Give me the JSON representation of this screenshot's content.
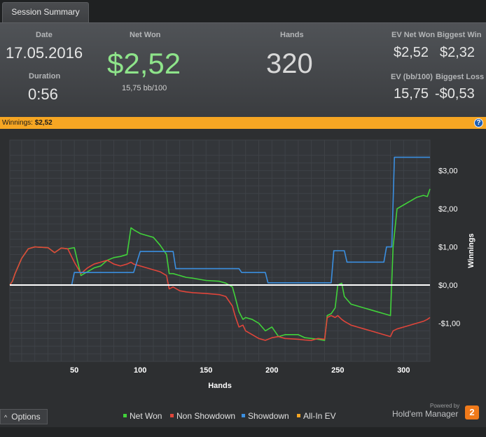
{
  "tab": {
    "label": "Session Summary"
  },
  "summary": {
    "date_label": "Date",
    "date_value": "17.05.2016",
    "duration_label": "Duration",
    "duration_value": "0:56",
    "net_won_label": "Net Won",
    "net_won_value": "$2,52",
    "bb100_value": "15,75 bb/100",
    "hands_label": "Hands",
    "hands_value": "320",
    "ev_net_won_label": "EV Net Won",
    "ev_net_won_value": "$2,52",
    "biggest_win_label": "Biggest Win",
    "biggest_win_value": "$2,32",
    "ev_bb100_label": "EV (bb/100)",
    "ev_bb100_value": "15,75",
    "biggest_loss_label": "Biggest Loss",
    "biggest_loss_value": "-$0,53"
  },
  "winbar": {
    "label": "Winnings:",
    "value": "$2,52",
    "help": "?"
  },
  "options": {
    "label": "Options"
  },
  "legend": [
    {
      "label": "Net Won",
      "color": "#41d23a"
    },
    {
      "label": "Non Showdown",
      "color": "#e0453a"
    },
    {
      "label": "Showdown",
      "color": "#3b8fe0"
    },
    {
      "label": "All-In EV",
      "color": "#f6a623"
    }
  ],
  "branding": {
    "powered": "Powered by",
    "name": "Hold'em Manager",
    "logo": "2"
  },
  "colors": {
    "accent": "#f6a623",
    "net_won": "#41d23a",
    "non_showdown": "#e0453a",
    "showdown": "#3b8fe0"
  },
  "chart_data": {
    "type": "line",
    "xlabel": "Hands",
    "ylabel": "Winnings",
    "xlim": [
      1,
      320
    ],
    "ylim": [
      -2.0,
      3.8
    ],
    "xticks": [
      50,
      100,
      150,
      200,
      250,
      300
    ],
    "yticks": [
      3.0,
      2.0,
      1.0,
      0.0,
      -1.0
    ],
    "ytick_labels": [
      "$3,00",
      "$2,00",
      "$1,00",
      "$0,00",
      "-$1,00"
    ],
    "grid": true,
    "series": [
      {
        "name": "Net Won",
        "color": "#41d23a",
        "x": [
          1,
          3,
          5,
          10,
          15,
          20,
          30,
          35,
          40,
          45,
          50,
          55,
          60,
          65,
          70,
          75,
          80,
          85,
          90,
          93,
          95,
          100,
          105,
          110,
          115,
          120,
          122,
          125,
          130,
          135,
          140,
          150,
          160,
          165,
          170,
          172,
          175,
          178,
          180,
          185,
          190,
          195,
          200,
          205,
          210,
          220,
          225,
          230,
          235,
          240,
          242,
          245,
          248,
          250,
          253,
          255,
          260,
          265,
          270,
          275,
          280,
          285,
          290,
          292,
          295,
          300,
          305,
          310,
          315,
          318,
          320
        ],
        "y": [
          0.0,
          0.1,
          0.3,
          0.7,
          0.95,
          1.0,
          0.98,
          0.85,
          0.97,
          0.95,
          0.98,
          0.25,
          0.35,
          0.45,
          0.5,
          0.65,
          0.72,
          0.75,
          0.8,
          1.5,
          1.45,
          1.35,
          1.3,
          1.25,
          1.05,
          0.8,
          0.3,
          0.3,
          0.25,
          0.2,
          0.18,
          0.12,
          0.1,
          0.05,
          -0.05,
          -0.3,
          -0.7,
          -0.9,
          -0.85,
          -0.9,
          -1.0,
          -1.2,
          -1.1,
          -1.35,
          -1.3,
          -1.3,
          -1.38,
          -1.4,
          -1.42,
          -1.45,
          -0.8,
          -0.75,
          -0.6,
          0.0,
          0.05,
          -0.3,
          -0.5,
          -0.55,
          -0.6,
          -0.65,
          -0.7,
          -0.75,
          -0.8,
          1.0,
          2.0,
          2.1,
          2.2,
          2.3,
          2.35,
          2.32,
          2.52
        ]
      },
      {
        "name": "Non Showdown",
        "color": "#e0453a",
        "x": [
          1,
          3,
          5,
          10,
          15,
          20,
          30,
          35,
          40,
          45,
          50,
          55,
          60,
          65,
          70,
          75,
          80,
          85,
          90,
          93,
          95,
          100,
          105,
          110,
          115,
          120,
          122,
          125,
          130,
          135,
          140,
          150,
          160,
          165,
          170,
          172,
          175,
          178,
          180,
          185,
          190,
          195,
          200,
          205,
          210,
          220,
          225,
          230,
          235,
          240,
          242,
          245,
          248,
          250,
          253,
          255,
          260,
          265,
          270,
          275,
          280,
          285,
          290,
          292,
          295,
          300,
          305,
          310,
          315,
          318,
          320
        ],
        "y": [
          0.0,
          0.1,
          0.3,
          0.7,
          0.95,
          1.0,
          0.98,
          0.85,
          0.97,
          0.95,
          0.6,
          0.3,
          0.45,
          0.55,
          0.6,
          0.65,
          0.55,
          0.5,
          0.55,
          0.6,
          0.55,
          0.5,
          0.45,
          0.4,
          0.35,
          0.25,
          -0.1,
          -0.05,
          -0.15,
          -0.18,
          -0.2,
          -0.22,
          -0.25,
          -0.3,
          -0.55,
          -0.8,
          -1.1,
          -1.05,
          -1.2,
          -1.3,
          -1.4,
          -1.45,
          -1.38,
          -1.35,
          -1.4,
          -1.42,
          -1.44,
          -1.45,
          -1.4,
          -1.42,
          -0.85,
          -0.8,
          -0.85,
          -0.8,
          -0.9,
          -0.95,
          -1.05,
          -1.1,
          -1.15,
          -1.2,
          -1.25,
          -1.3,
          -1.35,
          -1.2,
          -1.15,
          -1.1,
          -1.05,
          -1.0,
          -0.95,
          -0.9,
          -0.85
        ]
      },
      {
        "name": "Showdown",
        "color": "#3b8fe0",
        "x": [
          1,
          48,
          50,
          95,
          100,
          125,
          127,
          175,
          177,
          195,
          197,
          245,
          247,
          255,
          257,
          285,
          287,
          291,
          293,
          320
        ],
        "y": [
          0.0,
          0.0,
          0.33,
          0.33,
          0.88,
          0.88,
          0.43,
          0.43,
          0.33,
          0.33,
          0.06,
          0.06,
          0.9,
          0.9,
          0.6,
          0.6,
          1.0,
          1.0,
          3.35,
          3.35
        ]
      }
    ]
  }
}
